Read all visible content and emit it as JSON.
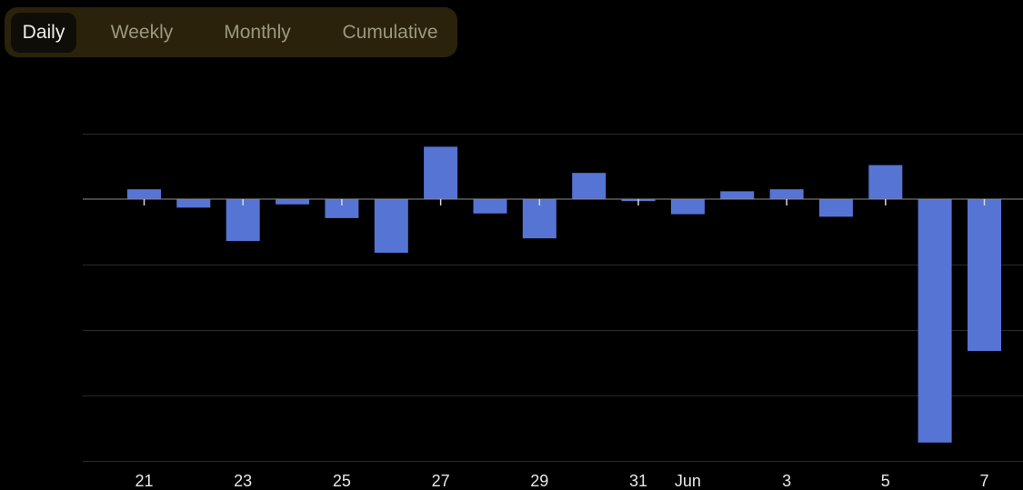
{
  "tabs": [
    {
      "label": "Daily",
      "active": true
    },
    {
      "label": "Weekly",
      "active": false
    },
    {
      "label": "Monthly",
      "active": false
    },
    {
      "label": "Cumulative",
      "active": false
    }
  ],
  "colors": {
    "bar": "#5674d4",
    "grid": "#2a2a2a",
    "axis": "#8a8a8a",
    "tick_label": "#e8e8e8",
    "tab_bg": "#2a220b",
    "tab_active_bg": "#0f0d07"
  },
  "chart_data": {
    "type": "bar",
    "categories": [
      "May 21",
      "May 22",
      "May 23",
      "May 24",
      "May 25",
      "May 26",
      "May 27",
      "May 28",
      "May 29",
      "May 30",
      "May 31",
      "Jun 1",
      "Jun 2",
      "Jun 3",
      "Jun 4",
      "Jun 5",
      "Jun 6",
      "Jun 7"
    ],
    "values": [
      0.15,
      -0.13,
      -0.64,
      -0.08,
      -0.29,
      -0.82,
      0.8,
      -0.22,
      -0.6,
      0.4,
      -0.03,
      -0.23,
      0.12,
      0.15,
      -0.27,
      0.52,
      -3.72,
      -2.32
    ],
    "x_tick_labels": [
      "21",
      "23",
      "25",
      "27",
      "29",
      "31",
      "Jun",
      "3",
      "5",
      "7"
    ],
    "ylim": [
      -4.0,
      1.0
    ],
    "grid": true,
    "title": "",
    "xlabel": "",
    "ylabel": ""
  }
}
